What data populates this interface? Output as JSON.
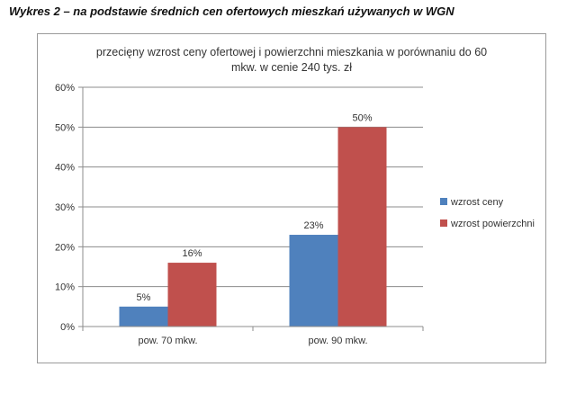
{
  "caption": "Wykres 2 – na podstawie średnich cen ofertowych mieszkań używanych w WGN",
  "chart_data": {
    "type": "bar",
    "title_lines": [
      "przecięny wzrost ceny ofertowej i powierzchni mieszkania w porównaniu do 60",
      "mkw. w cenie 240 tys. zł"
    ],
    "categories": [
      "pow. 70 mkw.",
      "pow. 90 mkw."
    ],
    "series": [
      {
        "name": "wzrost ceny",
        "values": [
          5,
          23
        ],
        "labels": [
          "5%",
          "23%"
        ],
        "color": "#4f81bd"
      },
      {
        "name": "wzrost powierzchni",
        "values": [
          16,
          50
        ],
        "labels": [
          "16%",
          "50%"
        ],
        "color": "#c0504d"
      }
    ],
    "ylim": [
      0,
      60
    ],
    "yticks": [
      "0%",
      "10%",
      "20%",
      "30%",
      "40%",
      "50%",
      "60%"
    ],
    "grid": true,
    "legend": "right"
  }
}
